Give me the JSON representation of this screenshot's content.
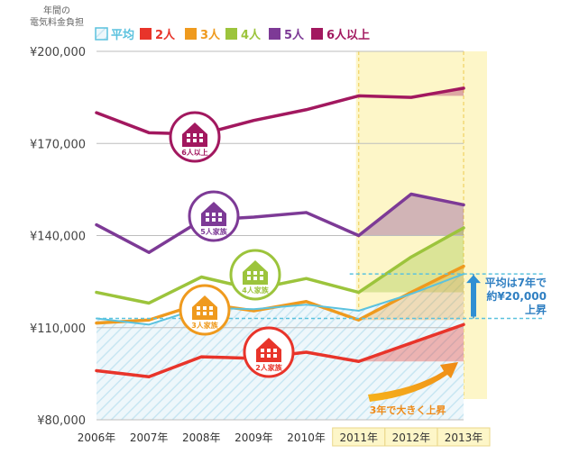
{
  "chart_data": {
    "type": "line",
    "ylabel": "年間の\n電気料金負担",
    "x": [
      "2006年",
      "2007年",
      "2008年",
      "2009年",
      "2010年",
      "2011年",
      "2012年",
      "2013年"
    ],
    "ylim": [
      80000,
      200000
    ],
    "yticks": [
      {
        "value": 80000,
        "label": "¥80,000"
      },
      {
        "value": 110000,
        "label": "¥110,000"
      },
      {
        "value": 140000,
        "label": "¥140,000"
      },
      {
        "value": 170000,
        "label": "¥170,000"
      },
      {
        "value": 200000,
        "label": "¥200,000"
      }
    ],
    "legend_position": "top",
    "highlight_period": [
      "2011年",
      "2013年"
    ],
    "series": [
      {
        "key": "avg",
        "name": "平均",
        "color": "#5bc2de",
        "dashed": true,
        "values": [
          113000,
          111000,
          116500,
          116000,
          117500,
          115500,
          121000,
          127500
        ]
      },
      {
        "key": "p2",
        "name": "2人",
        "color": "#e8342a",
        "values": [
          96000,
          94000,
          100500,
          100000,
          102000,
          99000,
          105000,
          111000
        ]
      },
      {
        "key": "p3",
        "name": "3人",
        "color": "#ef9a1e",
        "values": [
          111500,
          112500,
          118000,
          115500,
          118500,
          112500,
          121500,
          130000
        ]
      },
      {
        "key": "p4",
        "name": "4人",
        "color": "#9cc43c",
        "values": [
          121500,
          118000,
          126500,
          122500,
          126000,
          121500,
          133000,
          142500
        ]
      },
      {
        "key": "p5",
        "name": "5人",
        "color": "#7d3a96",
        "values": [
          143500,
          134500,
          145000,
          146000,
          147500,
          140000,
          153500,
          150000
        ]
      },
      {
        "key": "p6",
        "name": "6人以上",
        "color": "#a2185f",
        "values": [
          180000,
          173500,
          173000,
          177500,
          181000,
          185500,
          185000,
          188000
        ]
      }
    ],
    "house_labels": [
      {
        "series": "p6",
        "text": "6人以上"
      },
      {
        "series": "p5",
        "text": "5人家族"
      },
      {
        "series": "p4",
        "text": "4人家族"
      },
      {
        "series": "p3",
        "text": "3人家族"
      },
      {
        "series": "p2",
        "text": "2人家族"
      }
    ],
    "annotations": {
      "increase_note": {
        "line1": "平均は7年で",
        "line2": "約¥20,000",
        "line3": "上昇"
      },
      "rise_caption": "3年で大きく上昇"
    }
  }
}
